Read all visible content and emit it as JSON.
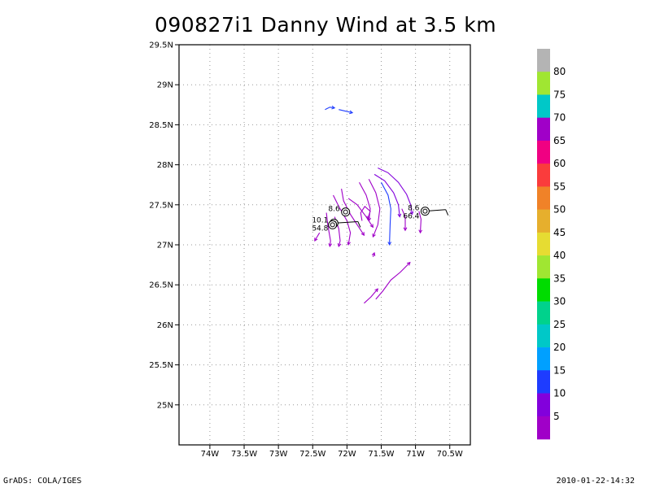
{
  "chart_data": {
    "type": "vector-field",
    "title": "090827i1 Danny Wind at 3.5 km",
    "x_ticks": [
      {
        "value": -74.0,
        "label": "74W"
      },
      {
        "value": -73.5,
        "label": "73.5W"
      },
      {
        "value": -73.0,
        "label": "73W"
      },
      {
        "value": -72.5,
        "label": "72.5W"
      },
      {
        "value": -72.0,
        "label": "72W"
      },
      {
        "value": -71.5,
        "label": "71.5W"
      },
      {
        "value": -71.0,
        "label": "71W"
      },
      {
        "value": -70.5,
        "label": "70.5W"
      }
    ],
    "y_ticks": [
      {
        "value": 25.0,
        "label": "25N"
      },
      {
        "value": 25.5,
        "label": "25.5N"
      },
      {
        "value": 26.0,
        "label": "26N"
      },
      {
        "value": 26.5,
        "label": "26.5N"
      },
      {
        "value": 27.0,
        "label": "27N"
      },
      {
        "value": 27.5,
        "label": "27.5N"
      },
      {
        "value": 28.0,
        "label": "28N"
      },
      {
        "value": 28.5,
        "label": "28.5N"
      },
      {
        "value": 29.0,
        "label": "29N"
      },
      {
        "value": 29.5,
        "label": "29.5N"
      }
    ],
    "xlim": [
      -74.45,
      -70.2
    ],
    "ylim": [
      24.5,
      29.5
    ],
    "grid": true,
    "colorbar": {
      "labels": [
        "5",
        "10",
        "15",
        "20",
        "25",
        "30",
        "35",
        "40",
        "45",
        "50",
        "55",
        "60",
        "65",
        "70",
        "75",
        "80"
      ],
      "colors": [
        "#a000c8",
        "#8200dc",
        "#1e3cff",
        "#00a0ff",
        "#00c8c8",
        "#00d28c",
        "#00dc00",
        "#a0e632",
        "#e6dc32",
        "#e6af2d",
        "#f08228",
        "#fa3c3c",
        "#f00082",
        "#a000c8",
        "#00c8c8",
        "#a0e632",
        "#b4b4b4"
      ]
    },
    "streamlines": [
      {
        "color": "#1e3cff",
        "points": [
          [
            -72.32,
            28.69
          ],
          [
            -72.25,
            28.72
          ],
          [
            -72.18,
            28.71
          ]
        ]
      },
      {
        "color": "#1e3cff",
        "points": [
          [
            -72.12,
            28.69
          ],
          [
            -72.02,
            28.67
          ],
          [
            -71.92,
            28.65
          ]
        ]
      },
      {
        "color": "#8200dc",
        "points": [
          [
            -71.55,
            27.96
          ],
          [
            -71.4,
            27.9
          ],
          [
            -71.25,
            27.78
          ],
          [
            -71.13,
            27.63
          ],
          [
            -71.07,
            27.5
          ],
          [
            -71.05,
            27.38
          ]
        ]
      },
      {
        "color": "#8200dc",
        "points": [
          [
            -71.6,
            27.88
          ],
          [
            -71.45,
            27.8
          ],
          [
            -71.32,
            27.65
          ],
          [
            -71.25,
            27.5
          ],
          [
            -71.23,
            27.35
          ]
        ]
      },
      {
        "color": "#1e3cff",
        "points": [
          [
            -71.5,
            27.78
          ],
          [
            -71.4,
            27.62
          ],
          [
            -71.36,
            27.45
          ],
          [
            -71.37,
            27.25
          ],
          [
            -71.38,
            27.0
          ]
        ]
      },
      {
        "color": "#a000c8",
        "points": [
          [
            -71.68,
            27.82
          ],
          [
            -71.58,
            27.65
          ],
          [
            -71.52,
            27.45
          ],
          [
            -71.55,
            27.25
          ],
          [
            -71.62,
            27.1
          ]
        ]
      },
      {
        "color": "#a000c8",
        "points": [
          [
            -71.82,
            27.78
          ],
          [
            -71.72,
            27.62
          ],
          [
            -71.66,
            27.45
          ],
          [
            -71.68,
            27.3
          ]
        ]
      },
      {
        "color": "#a000c8",
        "points": [
          [
            -71.98,
            27.58
          ],
          [
            -71.85,
            27.5
          ],
          [
            -71.72,
            27.35
          ],
          [
            -71.62,
            27.22
          ]
        ]
      },
      {
        "color": "#a000c8",
        "points": [
          [
            -72.08,
            27.7
          ],
          [
            -72.05,
            27.55
          ],
          [
            -71.95,
            27.38
          ],
          [
            -71.85,
            27.25
          ],
          [
            -71.75,
            27.12
          ]
        ]
      },
      {
        "color": "#a000c8",
        "points": [
          [
            -72.2,
            27.62
          ],
          [
            -72.12,
            27.48
          ],
          [
            -72.0,
            27.3
          ],
          [
            -71.95,
            27.15
          ],
          [
            -71.98,
            27.0
          ]
        ]
      },
      {
        "color": "#a000c8",
        "points": [
          [
            -72.18,
            27.35
          ],
          [
            -72.12,
            27.2
          ],
          [
            -72.1,
            27.05
          ],
          [
            -72.12,
            26.98
          ]
        ]
      },
      {
        "color": "#a000c8",
        "points": [
          [
            -72.3,
            27.4
          ],
          [
            -72.28,
            27.25
          ],
          [
            -72.24,
            27.05
          ],
          [
            -72.25,
            26.98
          ]
        ]
      },
      {
        "color": "#a000c8",
        "points": [
          [
            -72.4,
            27.15
          ],
          [
            -72.45,
            27.08
          ],
          [
            -72.47,
            27.05
          ]
        ]
      },
      {
        "color": "#a000c8",
        "points": [
          [
            -71.78,
            27.3
          ],
          [
            -71.8,
            27.4
          ],
          [
            -71.74,
            27.48
          ],
          [
            -71.66,
            27.42
          ],
          [
            -71.7,
            27.32
          ]
        ]
      },
      {
        "color": "#a000c8",
        "points": [
          [
            -70.95,
            27.42
          ],
          [
            -70.92,
            27.32
          ],
          [
            -70.93,
            27.15
          ]
        ]
      },
      {
        "color": "#a000c8",
        "points": [
          [
            -71.2,
            27.45
          ],
          [
            -71.15,
            27.35
          ],
          [
            -71.15,
            27.18
          ]
        ]
      },
      {
        "color": "#a000c8",
        "points": [
          [
            -71.62,
            26.85
          ],
          [
            -71.6,
            26.9
          ]
        ]
      },
      {
        "color": "#a000c8",
        "points": [
          [
            -71.58,
            26.32
          ],
          [
            -71.48,
            26.42
          ],
          [
            -71.36,
            26.56
          ],
          [
            -71.22,
            26.66
          ],
          [
            -71.08,
            26.78
          ]
        ]
      },
      {
        "color": "#a000c8",
        "points": [
          [
            -71.75,
            26.27
          ],
          [
            -71.65,
            26.35
          ],
          [
            -71.55,
            26.45
          ]
        ]
      }
    ],
    "markers": [
      {
        "x": -72.02,
        "y": 27.41,
        "label": "8.6",
        "barb_to": [
          -72.0,
          27.41
        ]
      },
      {
        "x": -72.19,
        "y": 27.27,
        "label": "10.1",
        "label2": "54.8",
        "barb_to": [
          -71.84,
          27.29
        ]
      },
      {
        "x": -72.21,
        "y": 27.25,
        "label": "",
        "barb_to": [
          -72.21,
          27.25
        ]
      },
      {
        "x": -70.86,
        "y": 27.42,
        "label": "8.6",
        "label2": "66.4",
        "barb_to": [
          -70.56,
          27.44
        ]
      }
    ]
  },
  "footer": {
    "left": "GrADS: COLA/IGES",
    "right": "2010-01-22-14:32"
  }
}
